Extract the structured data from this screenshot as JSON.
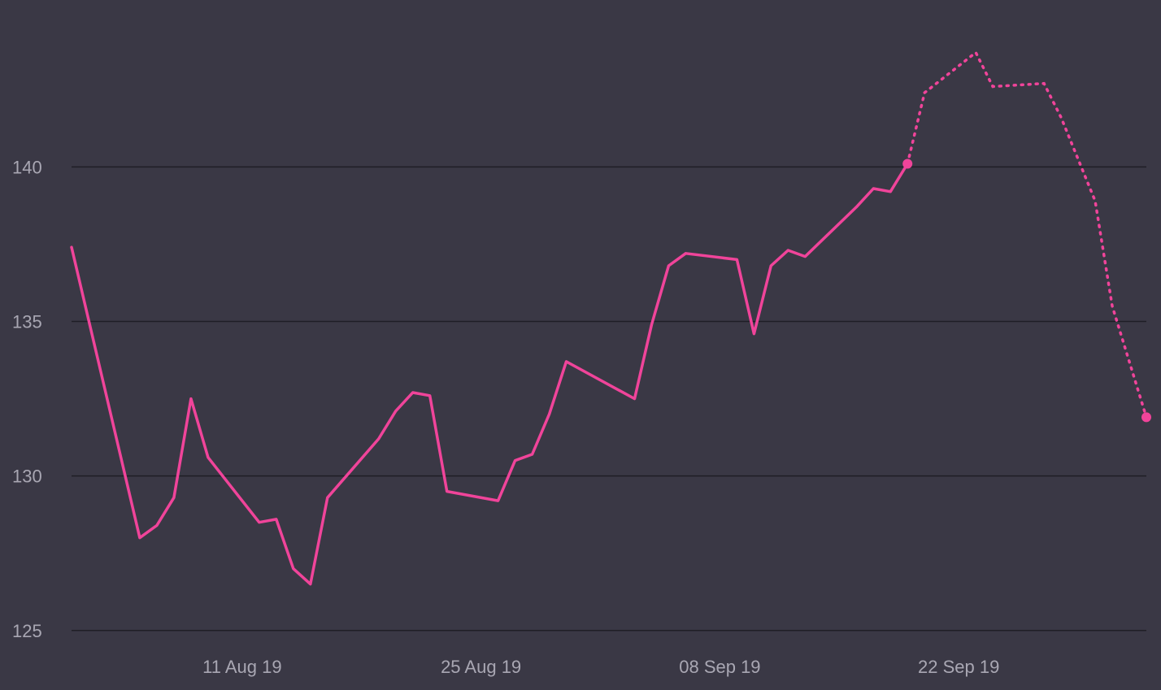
{
  "chart_data": {
    "type": "line",
    "title": "",
    "xlabel": "",
    "ylabel": "",
    "ylim": [
      124.1,
      145.4
    ],
    "xlim": [
      "2019-08-01",
      "2019-10-03"
    ],
    "y_ticks": [
      125,
      130,
      135,
      140
    ],
    "x_ticks": [
      {
        "date": "2019-08-11",
        "label": "11 Aug 19"
      },
      {
        "date": "2019-08-25",
        "label": "25 Aug 19"
      },
      {
        "date": "2019-09-08",
        "label": "08 Sep 19"
      },
      {
        "date": "2019-09-22",
        "label": "22 Sep 19"
      }
    ],
    "grid": true,
    "legend": "none",
    "colors": {
      "background": "#3a3845",
      "line": "#f0449a",
      "grid": "#1f1e26",
      "tick_text": "#a9a7b3"
    },
    "series": [
      {
        "style": "solid",
        "points": [
          {
            "x": "2019-08-01",
            "y": 137.4
          },
          {
            "x": "2019-08-05",
            "y": 128.0
          },
          {
            "x": "2019-08-06",
            "y": 128.4
          },
          {
            "x": "2019-08-07",
            "y": 129.3
          },
          {
            "x": "2019-08-08",
            "y": 132.5
          },
          {
            "x": "2019-08-09",
            "y": 130.6
          },
          {
            "x": "2019-08-12",
            "y": 128.5
          },
          {
            "x": "2019-08-13",
            "y": 128.6
          },
          {
            "x": "2019-08-14",
            "y": 127.0
          },
          {
            "x": "2019-08-15",
            "y": 126.5
          },
          {
            "x": "2019-08-16",
            "y": 129.3
          },
          {
            "x": "2019-08-19",
            "y": 131.2
          },
          {
            "x": "2019-08-20",
            "y": 132.1
          },
          {
            "x": "2019-08-21",
            "y": 132.7
          },
          {
            "x": "2019-08-22",
            "y": 132.6
          },
          {
            "x": "2019-08-23",
            "y": 129.5
          },
          {
            "x": "2019-08-26",
            "y": 129.2
          },
          {
            "x": "2019-08-27",
            "y": 130.5
          },
          {
            "x": "2019-08-28",
            "y": 130.7
          },
          {
            "x": "2019-08-29",
            "y": 132.0
          },
          {
            "x": "2019-08-30",
            "y": 133.7
          },
          {
            "x": "2019-09-03",
            "y": 132.5
          },
          {
            "x": "2019-09-04",
            "y": 134.9
          },
          {
            "x": "2019-09-05",
            "y": 136.8
          },
          {
            "x": "2019-09-06",
            "y": 137.2
          },
          {
            "x": "2019-09-09",
            "y": 137.0
          },
          {
            "x": "2019-09-10",
            "y": 134.6
          },
          {
            "x": "2019-09-11",
            "y": 136.8
          },
          {
            "x": "2019-09-12",
            "y": 137.3
          },
          {
            "x": "2019-09-13",
            "y": 137.1
          },
          {
            "x": "2019-09-16",
            "y": 138.7
          },
          {
            "x": "2019-09-17",
            "y": 139.3
          },
          {
            "x": "2019-09-18",
            "y": 139.2
          },
          {
            "x": "2019-09-19",
            "y": 140.1
          }
        ]
      },
      {
        "style": "dotted",
        "points": [
          {
            "x": "2019-09-19",
            "y": 140.1
          },
          {
            "x": "2019-09-20",
            "y": 142.4
          },
          {
            "x": "2019-09-23",
            "y": 143.7
          },
          {
            "x": "2019-09-24",
            "y": 142.6
          },
          {
            "x": "2019-09-27",
            "y": 142.7
          },
          {
            "x": "2019-09-28",
            "y": 141.6
          },
          {
            "x": "2019-09-30",
            "y": 138.9
          },
          {
            "x": "2019-10-01",
            "y": 135.5
          },
          {
            "x": "2019-10-03",
            "y": 131.9
          }
        ]
      }
    ],
    "markers": [
      {
        "x": "2019-09-19",
        "y": 140.1
      },
      {
        "x": "2019-10-03",
        "y": 131.9
      }
    ]
  }
}
